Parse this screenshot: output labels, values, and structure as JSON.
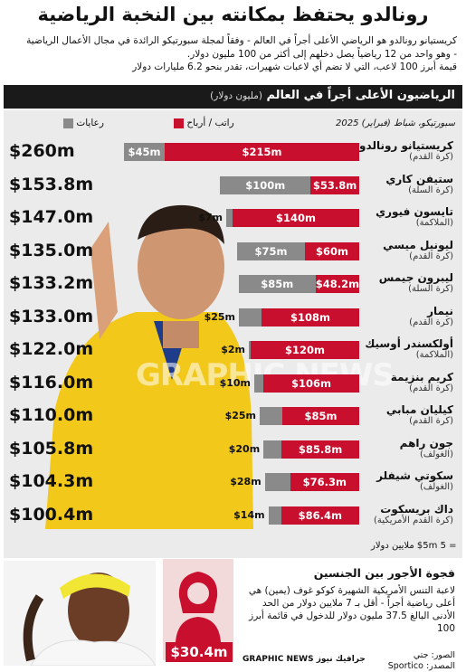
{
  "headline": "رونالدو يحتفظ بمكانته بين النخبة الرياضية",
  "intro": [
    "كريستيانو رونالدو هو الرياضي الأعلى أجراً في العالم - وفقاً لمجلة سبورتيكو الرائدة في مجال الأعمال الرياضية",
    "- وهو واحد من 12 رياضياً يصل دخلهم إلى أكثر من 100 مليون دولار.",
    "قيمة أبرز 100 لاعب، التي لا تضم أي لاعبات شهيرات، تقدر بنحو 6.2 مليارات دولار"
  ],
  "section_title": "الرياضيون الأعلى أجراً في العالم",
  "section_unit": "(مليون دولار)",
  "source_date": "سبورتيكو، شباط (فبراير) 2025",
  "legend": {
    "salary": "راتب / أرباح",
    "endorsements": "رعايات"
  },
  "watermark": "GRAPHIC NEWS",
  "scale_note": "= $5m 5 ملايين دولار",
  "colors": {
    "salary": "#c8102e",
    "endorsements": "#8a8a8a",
    "panel": "#ebebeb"
  },
  "chart_data": {
    "type": "bar",
    "orientation": "horizontal-stacked",
    "unit": "million USD",
    "series": [
      {
        "name": "راتب / أرباح",
        "key": "salary"
      },
      {
        "name": "رعايات",
        "key": "endorsements"
      }
    ],
    "athletes": [
      {
        "name": "كريستيانو رونالدو",
        "sport": "(كرة القدم)",
        "total": 260.0,
        "total_label": "$260m",
        "salary": 215,
        "salary_label": "$215m",
        "endorsements": 45,
        "endorsements_label": "$45m"
      },
      {
        "name": "ستيفن كاري",
        "sport": "(كرة السلة)",
        "total": 153.8,
        "total_label": "$153.8m",
        "salary": 53.8,
        "salary_label": "$53.8m",
        "endorsements": 100,
        "endorsements_label": "$100m"
      },
      {
        "name": "تايسون فيوري",
        "sport": "(الملاكمة)",
        "total": 147.0,
        "total_label": "$147.0m",
        "salary": 140,
        "salary_label": "$140m",
        "endorsements": 7,
        "endorsements_label": "$7m"
      },
      {
        "name": "ليونيل ميسي",
        "sport": "(كرة القدم)",
        "total": 135.0,
        "total_label": "$135.0m",
        "salary": 60,
        "salary_label": "$60m",
        "endorsements": 75,
        "endorsements_label": "$75m"
      },
      {
        "name": "ليبرون جيمس",
        "sport": "(كرة السلة)",
        "total": 133.2,
        "total_label": "$133.2m",
        "salary": 48.2,
        "salary_label": "$48.2m",
        "endorsements": 85,
        "endorsements_label": "$85m"
      },
      {
        "name": "نيمار",
        "sport": "(كرة القدم)",
        "total": 133.0,
        "total_label": "$133.0m",
        "salary": 108,
        "salary_label": "$108m",
        "endorsements": 25,
        "endorsements_label": "$25m"
      },
      {
        "name": "أولكسندر أوسيك",
        "sport": "(الملاكمة)",
        "total": 122.0,
        "total_label": "$122.0m",
        "salary": 120,
        "salary_label": "$120m",
        "endorsements": 2,
        "endorsements_label": "$2m"
      },
      {
        "name": "كريم بنزيمة",
        "sport": "(كرة القدم)",
        "total": 116.0,
        "total_label": "$116.0m",
        "salary": 106,
        "salary_label": "$106m",
        "endorsements": 10,
        "endorsements_label": "$10m"
      },
      {
        "name": "كيليان مبابي",
        "sport": "(كرة القدم)",
        "total": 110.0,
        "total_label": "$110.0m",
        "salary": 85,
        "salary_label": "$85m",
        "endorsements": 25,
        "endorsements_label": "$25m"
      },
      {
        "name": "جون راهم",
        "sport": "(الغولف)",
        "total": 105.8,
        "total_label": "$105.8m",
        "salary": 85.8,
        "salary_label": "$85.8m",
        "endorsements": 20,
        "endorsements_label": "$20m"
      },
      {
        "name": "سكوتي شيفلر",
        "sport": "(الغولف)",
        "total": 104.3,
        "total_label": "$104.3m",
        "salary": 76.3,
        "salary_label": "$76.3m",
        "endorsements": 28,
        "endorsements_label": "$28m"
      },
      {
        "name": "داك بريسكوت",
        "sport": "(كرة القدم الأمريكية)",
        "total": 100.4,
        "total_label": "$100.4m",
        "salary": 86.4,
        "salary_label": "$86.4m",
        "endorsements": 14,
        "endorsements_label": "$14m"
      }
    ]
  },
  "gender_gap": {
    "title": "فجوة الأجور بين الجنسين",
    "text": "لاعبة التنس الأمريكية الشهيرة كوكو غوف (يمين) هي أعلى رياضية أجراً - أقل بـ 7 ملايين دولار من الحد الأدنى البالغ 37.5 مليون دولار للدخول في قائمة أبرز 100",
    "value": "$30.4m"
  },
  "footer": {
    "source": "المصدر: Sportico",
    "photos": "الصور: جتي",
    "brand": "GRAPHIC NEWS جرافيك نيوز"
  }
}
